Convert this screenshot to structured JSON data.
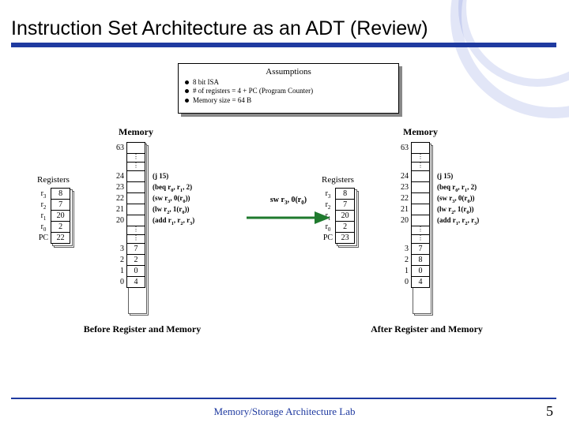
{
  "title": "Instruction Set Architecture as an ADT (Review)",
  "assumptions": {
    "heading": "Assumptions",
    "items": [
      "8 bit ISA",
      "# of registers = 4 + PC (Program Counter)",
      "Memory size = 64 B"
    ]
  },
  "panel_left": {
    "mem_label": "Memory",
    "reg_label": "Registers",
    "top_addr": "63",
    "regs": [
      {
        "name_html": "r<sub>3</sub>",
        "val": "8"
      },
      {
        "name_html": "r<sub>2</sub>",
        "val": "7"
      },
      {
        "name_html": "r<sub>1</sub>",
        "val": "20"
      },
      {
        "name_html": "r<sub>0</sub>",
        "val": "2"
      },
      {
        "name_html": "PC",
        "val": "22"
      }
    ],
    "mem_upper": [
      {
        "addr": "24",
        "instr_html": "(j 15)"
      },
      {
        "addr": "23",
        "instr_html": "(beq r<sub>0</sub>, r<sub>1</sub>, 2)"
      },
      {
        "addr": "22",
        "instr_html": "(sw r<sub>3</sub>, 0(r<sub>0</sub>))"
      },
      {
        "addr": "21",
        "instr_html": "(lw r<sub>2</sub>, 1(r<sub>0</sub>))"
      },
      {
        "addr": "20",
        "instr_html": "(add r<sub>1</sub>, r<sub>2</sub>, r<sub>3</sub>)"
      }
    ],
    "mem_lower": [
      {
        "addr": "3",
        "val": "7"
      },
      {
        "addr": "2",
        "val": "2"
      },
      {
        "addr": "1",
        "val": "0"
      },
      {
        "addr": "0",
        "val": "4"
      }
    ],
    "caption": "Before Register and Memory"
  },
  "panel_right": {
    "mem_label": "Memory",
    "reg_label": "Registers",
    "top_addr": "63",
    "regs": [
      {
        "name_html": "r<sub>3</sub>",
        "val": "8"
      },
      {
        "name_html": "r<sub>2</sub>",
        "val": "7"
      },
      {
        "name_html": "r<sub>1</sub>",
        "val": "20"
      },
      {
        "name_html": "r<sub>0</sub>",
        "val": "2"
      },
      {
        "name_html": "PC",
        "val": "23"
      }
    ],
    "mem_upper": [
      {
        "addr": "24",
        "instr_html": "(j 15)"
      },
      {
        "addr": "23",
        "instr_html": "(beq r<sub>0</sub>, r<sub>1</sub>, 2)"
      },
      {
        "addr": "22",
        "instr_html": "(sw r<sub>3</sub>, 0(r<sub>0</sub>))"
      },
      {
        "addr": "21",
        "instr_html": "(lw r<sub>2</sub>, 1(r<sub>0</sub>))"
      },
      {
        "addr": "20",
        "instr_html": "(add r<sub>1</sub>, r<sub>2</sub>, r<sub>3</sub>)"
      }
    ],
    "mem_lower": [
      {
        "addr": "3",
        "val": "7"
      },
      {
        "addr": "2",
        "val": "8"
      },
      {
        "addr": "1",
        "val": "0"
      },
      {
        "addr": "0",
        "val": "4"
      }
    ],
    "caption": "After Register and Memory"
  },
  "arrow_label_html": "sw r<sub>3</sub>, 0(r<sub>0</sub>)",
  "footer": "Memory/Storage Architecture Lab",
  "pagenum": "5",
  "colors": {
    "rule": "#1f3aa0",
    "arrow": "#1f7a2e"
  }
}
